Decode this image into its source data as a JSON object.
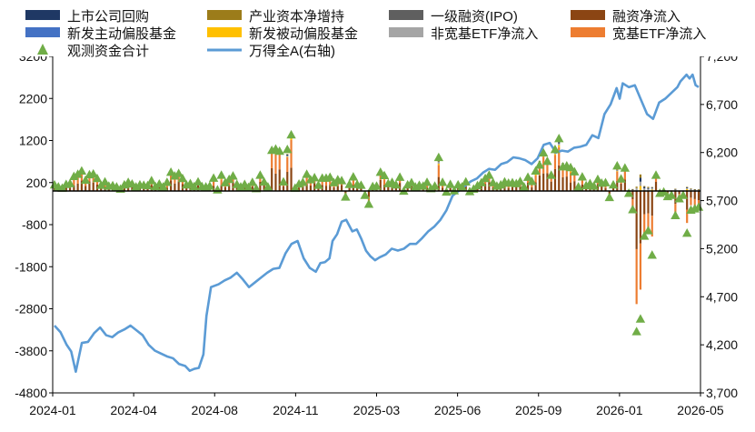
{
  "chart_data": {
    "type": "bar",
    "title": "",
    "subtitle": "",
    "xlabel": "",
    "ylabel": "",
    "y_left_ticks": [
      -4800,
      -3800,
      -2800,
      -1800,
      -800,
      200,
      1200,
      2200,
      3200
    ],
    "y_left_range": [
      -4800,
      3200
    ],
    "y_right_ticks": [
      3700,
      4200,
      4700,
      5200,
      5700,
      6200,
      6700,
      7200
    ],
    "y_right_ticks_labels": [
      "3,700",
      "4,200",
      "4,700",
      "5,200",
      "5,700",
      "6,200",
      "6,700",
      "7,200"
    ],
    "y_right_range": [
      3700,
      7200
    ],
    "x_ticks": [
      "2024-01",
      "2024-04",
      "2024-08",
      "2024-11",
      "2025-03",
      "2025-06",
      "2025-09",
      "2026-01",
      "2026-05"
    ],
    "grid": false,
    "legend_placement": "top",
    "legend": [
      {
        "name": "上市公司回购",
        "kind": "bar",
        "color": "#1f3864"
      },
      {
        "name": "产业资本净增持",
        "kind": "bar",
        "color": "#9c7c1a"
      },
      {
        "name": "一级融资(IPO)",
        "kind": "bar",
        "color": "#5f5f5f"
      },
      {
        "name": "融资净流入",
        "kind": "bar",
        "color": "#8b4513"
      },
      {
        "name": "新发主动偏股基金",
        "kind": "bar",
        "color": "#4472c4"
      },
      {
        "name": "新发被动偏股基金",
        "kind": "bar",
        "color": "#ffc000"
      },
      {
        "name": "非宽基ETF净流入",
        "kind": "bar",
        "color": "#a5a5a5"
      },
      {
        "name": "宽基ETF净流入",
        "kind": "bar",
        "color": "#ed7d31"
      },
      {
        "name": "观测资金合计",
        "kind": "marker",
        "color": "#70ad47"
      },
      {
        "name": "万得全A(右轴)",
        "kind": "line",
        "color": "#5b9bd5"
      }
    ],
    "total_approx": [
      150,
      100,
      70,
      160,
      180,
      350,
      400,
      480,
      260,
      390,
      410,
      300,
      140,
      220,
      120,
      130,
      100,
      50,
      150,
      210,
      170,
      100,
      150,
      140,
      130,
      250,
      110,
      170,
      100,
      210,
      450,
      360,
      420,
      300,
      150,
      180,
      110,
      220,
      110,
      100,
      120,
      310,
      30,
      380,
      200,
      280,
      360,
      160,
      100,
      160,
      90,
      210,
      60,
      380,
      220,
      100,
      970,
      1000,
      950,
      220,
      990,
      1340,
      70,
      170,
      210,
      400,
      270,
      320,
      140,
      310,
      310,
      330,
      200,
      270,
      250,
      -140,
      160,
      340,
      160,
      140,
      -100,
      -310,
      110,
      120,
      450,
      370,
      180,
      210,
      150,
      330,
      0,
      150,
      200,
      100,
      140,
      120,
      210,
      60,
      120,
      800,
      210,
      -20,
      160,
      10,
      150,
      100,
      220,
      -10,
      50,
      130,
      200,
      300,
      380,
      200,
      120,
      150,
      220,
      190,
      200,
      180,
      230,
      100,
      330,
      230,
      480,
      620,
      910,
      710,
      380,
      990,
      1250,
      580,
      600,
      560,
      460,
      100,
      340,
      130,
      180,
      120,
      280,
      190,
      200,
      -150,
      150,
      600,
      290,
      550,
      -50,
      -440,
      -3340,
      -3040,
      -1070,
      -940,
      -1520,
      380,
      -50,
      -20,
      -130,
      -100,
      -580,
      -180,
      -100,
      -1000,
      -450,
      -420,
      -380
    ]
  }
}
